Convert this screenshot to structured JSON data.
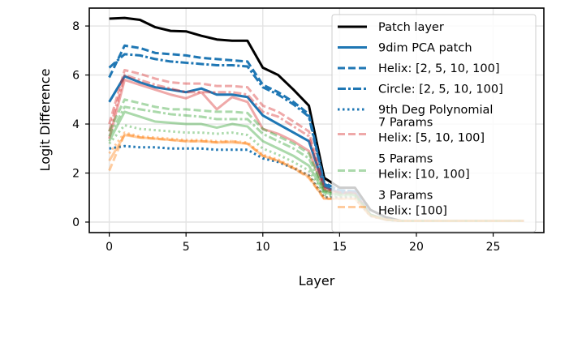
{
  "chart_data": {
    "type": "line",
    "title": "",
    "xlabel": "Layer",
    "ylabel": "Logit Difference",
    "xlim": [
      -1.3,
      28.3
    ],
    "ylim": [
      -0.43,
      8.73
    ],
    "xticks": [
      0,
      5,
      10,
      15,
      20,
      25
    ],
    "yticks": [
      0,
      2,
      4,
      6,
      8
    ],
    "grid": true,
    "legend_position": "top-right",
    "x": [
      0,
      1,
      2,
      3,
      4,
      5,
      6,
      7,
      8,
      9,
      10,
      11,
      12,
      13,
      14,
      15,
      16,
      17,
      18,
      19,
      20,
      21,
      22,
      23,
      24,
      25,
      26,
      27
    ],
    "series": [
      {
        "name": "Patch layer",
        "color": "#000000",
        "alpha": 1,
        "style": "solid",
        "in_legend": true,
        "values": [
          8.3,
          8.33,
          8.25,
          7.95,
          7.8,
          7.78,
          7.6,
          7.45,
          7.4,
          7.4,
          6.3,
          6.0,
          5.4,
          4.75,
          1.8,
          1.4,
          1.4,
          0.5,
          0.2,
          0.05,
          0.05,
          0.05,
          0.05,
          0.05,
          0.05,
          0.05,
          0.05,
          0.05
        ]
      },
      {
        "name": "Helix: [2, 5, 10, 100]",
        "color": "#1f77b4",
        "alpha": 1,
        "style": "dashed",
        "in_legend": true,
        "values": [
          5.9,
          7.2,
          7.1,
          6.9,
          6.85,
          6.8,
          6.7,
          6.65,
          6.6,
          6.55,
          5.6,
          5.3,
          4.9,
          4.4,
          1.6,
          1.3,
          1.25,
          0.3,
          0.1,
          0.05,
          0.05,
          0.05,
          0.05,
          0.05,
          0.05,
          0.05,
          0.05,
          0.05
        ]
      },
      {
        "name": "Circle: [2, 5, 10, 100]",
        "color": "#1f77b4",
        "alpha": 1,
        "style": "dashdot",
        "in_legend": true,
        "values": [
          6.3,
          6.85,
          6.8,
          6.65,
          6.55,
          6.5,
          6.45,
          6.4,
          6.4,
          6.35,
          5.5,
          5.2,
          4.8,
          4.3,
          1.55,
          1.3,
          1.25,
          0.3,
          0.1,
          0.05,
          0.05,
          0.05,
          0.05,
          0.05,
          0.05,
          0.05,
          0.05,
          0.05
        ]
      },
      {
        "name": "9dim PCA patch",
        "color": "#1f77b4",
        "alpha": 1,
        "style": "solid",
        "in_legend": true,
        "values": [
          4.9,
          5.95,
          5.7,
          5.5,
          5.4,
          5.3,
          5.45,
          5.2,
          5.2,
          5.1,
          4.35,
          4.0,
          3.65,
          3.3,
          1.45,
          1.2,
          1.2,
          0.3,
          0.1,
          0.05,
          0.05,
          0.05,
          0.05,
          0.05,
          0.05,
          0.05,
          0.05,
          0.05
        ]
      },
      {
        "name": "9th Deg Polynomial",
        "color": "#1f77b4",
        "alpha": 1,
        "style": "dotted",
        "in_legend": true,
        "values": [
          3.0,
          3.1,
          3.05,
          3.05,
          3.0,
          3.0,
          3.0,
          2.95,
          2.95,
          2.95,
          2.6,
          2.45,
          2.2,
          1.9,
          1.0,
          1.0,
          1.0,
          0.25,
          0.1,
          0.05,
          0.05,
          0.05,
          0.05,
          0.05,
          0.05,
          0.05,
          0.05,
          0.05
        ]
      },
      {
        "name": "7 Params\nHelix: [5, 10, 100]",
        "color": "#d62728",
        "alpha": 0.4,
        "style": "dashed",
        "in_legend": true,
        "values": [
          4.0,
          6.2,
          6.05,
          5.85,
          5.7,
          5.65,
          5.65,
          5.55,
          5.55,
          5.5,
          4.75,
          4.5,
          4.1,
          3.7,
          1.4,
          1.2,
          1.2,
          0.3,
          0.1,
          0.05,
          0.05,
          0.05,
          0.05,
          0.05,
          0.05,
          0.05,
          0.05,
          0.05
        ]
      },
      {
        "color": "#d62728",
        "alpha": 0.4,
        "style": "dashdot",
        "in_legend": false,
        "values": [
          3.7,
          6.0,
          5.8,
          5.6,
          5.45,
          5.3,
          5.3,
          5.3,
          5.3,
          5.2,
          4.5,
          4.3,
          3.9,
          3.5,
          1.35,
          1.2,
          1.2,
          0.3,
          0.1,
          0.05,
          0.05,
          0.05,
          0.05,
          0.05,
          0.05,
          0.05,
          0.05,
          0.05
        ]
      },
      {
        "color": "#d62728",
        "alpha": 0.4,
        "style": "solid",
        "in_legend": false,
        "values": [
          3.4,
          5.8,
          5.6,
          5.4,
          5.2,
          5.05,
          5.3,
          4.6,
          5.1,
          4.9,
          3.8,
          3.6,
          3.3,
          2.9,
          1.3,
          1.15,
          1.15,
          0.3,
          0.1,
          0.05,
          0.05,
          0.05,
          0.05,
          0.05,
          0.05,
          0.05,
          0.05,
          0.05
        ]
      },
      {
        "name": "5 Params\nHelix: [10, 100]",
        "color": "#2ca02c",
        "alpha": 0.4,
        "style": "dashed",
        "in_legend": true,
        "values": [
          3.7,
          5.0,
          4.85,
          4.7,
          4.6,
          4.6,
          4.55,
          4.5,
          4.5,
          4.45,
          3.8,
          3.5,
          3.2,
          2.8,
          1.3,
          1.15,
          1.15,
          0.3,
          0.1,
          0.05,
          0.05,
          0.05,
          0.05,
          0.05,
          0.05,
          0.05,
          0.05,
          0.05
        ]
      },
      {
        "color": "#2ca02c",
        "alpha": 0.4,
        "style": "dashdot",
        "in_legend": false,
        "values": [
          3.5,
          4.7,
          4.6,
          4.5,
          4.4,
          4.35,
          4.3,
          4.2,
          4.2,
          4.2,
          3.6,
          3.3,
          3.0,
          2.6,
          1.25,
          1.1,
          1.1,
          0.3,
          0.1,
          0.05,
          0.05,
          0.05,
          0.05,
          0.05,
          0.05,
          0.05,
          0.05,
          0.05
        ]
      },
      {
        "color": "#2ca02c",
        "alpha": 0.4,
        "style": "solid",
        "in_legend": false,
        "values": [
          3.3,
          4.5,
          4.3,
          4.1,
          4.05,
          4.0,
          4.0,
          3.85,
          4.0,
          3.9,
          3.3,
          3.0,
          2.7,
          2.3,
          1.2,
          1.1,
          1.1,
          0.3,
          0.1,
          0.05,
          0.05,
          0.05,
          0.05,
          0.05,
          0.05,
          0.05,
          0.05,
          0.05
        ]
      },
      {
        "color": "#2ca02c",
        "alpha": 0.4,
        "style": "dotted",
        "in_legend": false,
        "values": [
          3.2,
          3.95,
          3.8,
          3.75,
          3.7,
          3.65,
          3.65,
          3.6,
          3.65,
          3.55,
          3.0,
          2.75,
          2.45,
          2.1,
          1.1,
          1.05,
          1.05,
          0.3,
          0.1,
          0.05,
          0.05,
          0.05,
          0.05,
          0.05,
          0.05,
          0.05,
          0.05,
          0.05
        ]
      },
      {
        "name": "3 Params\nHelix: [100]",
        "color": "#ff7f0e",
        "alpha": 0.4,
        "style": "dashed",
        "in_legend": true,
        "values": [
          2.1,
          3.6,
          3.45,
          3.4,
          3.35,
          3.3,
          3.3,
          3.25,
          3.3,
          3.2,
          2.7,
          2.5,
          2.2,
          1.8,
          0.95,
          0.95,
          0.95,
          0.25,
          0.1,
          0.05,
          0.05,
          0.05,
          0.05,
          0.05,
          0.05,
          0.05,
          0.05,
          0.05
        ]
      },
      {
        "color": "#ff7f0e",
        "alpha": 0.4,
        "style": "solid",
        "in_legend": false,
        "values": [
          2.5,
          3.55,
          3.45,
          3.4,
          3.35,
          3.3,
          3.3,
          3.25,
          3.25,
          3.2,
          2.7,
          2.5,
          2.2,
          1.85,
          0.95,
          0.95,
          0.95,
          0.25,
          0.1,
          0.05,
          0.05,
          0.05,
          0.05,
          0.05,
          0.05,
          0.05,
          0.05,
          0.05
        ]
      },
      {
        "color": "#ff7f0e",
        "alpha": 0.4,
        "style": "dotted",
        "in_legend": false,
        "values": [
          2.8,
          3.65,
          3.5,
          3.45,
          3.4,
          3.35,
          3.35,
          3.3,
          3.3,
          3.25,
          2.75,
          2.55,
          2.25,
          1.9,
          1.0,
          1.0,
          1.0,
          0.25,
          0.1,
          0.05,
          0.05,
          0.05,
          0.05,
          0.05,
          0.05,
          0.05,
          0.05,
          0.05
        ]
      }
    ],
    "legend_order": [
      0,
      3,
      1,
      2,
      4,
      5,
      8,
      12
    ]
  }
}
